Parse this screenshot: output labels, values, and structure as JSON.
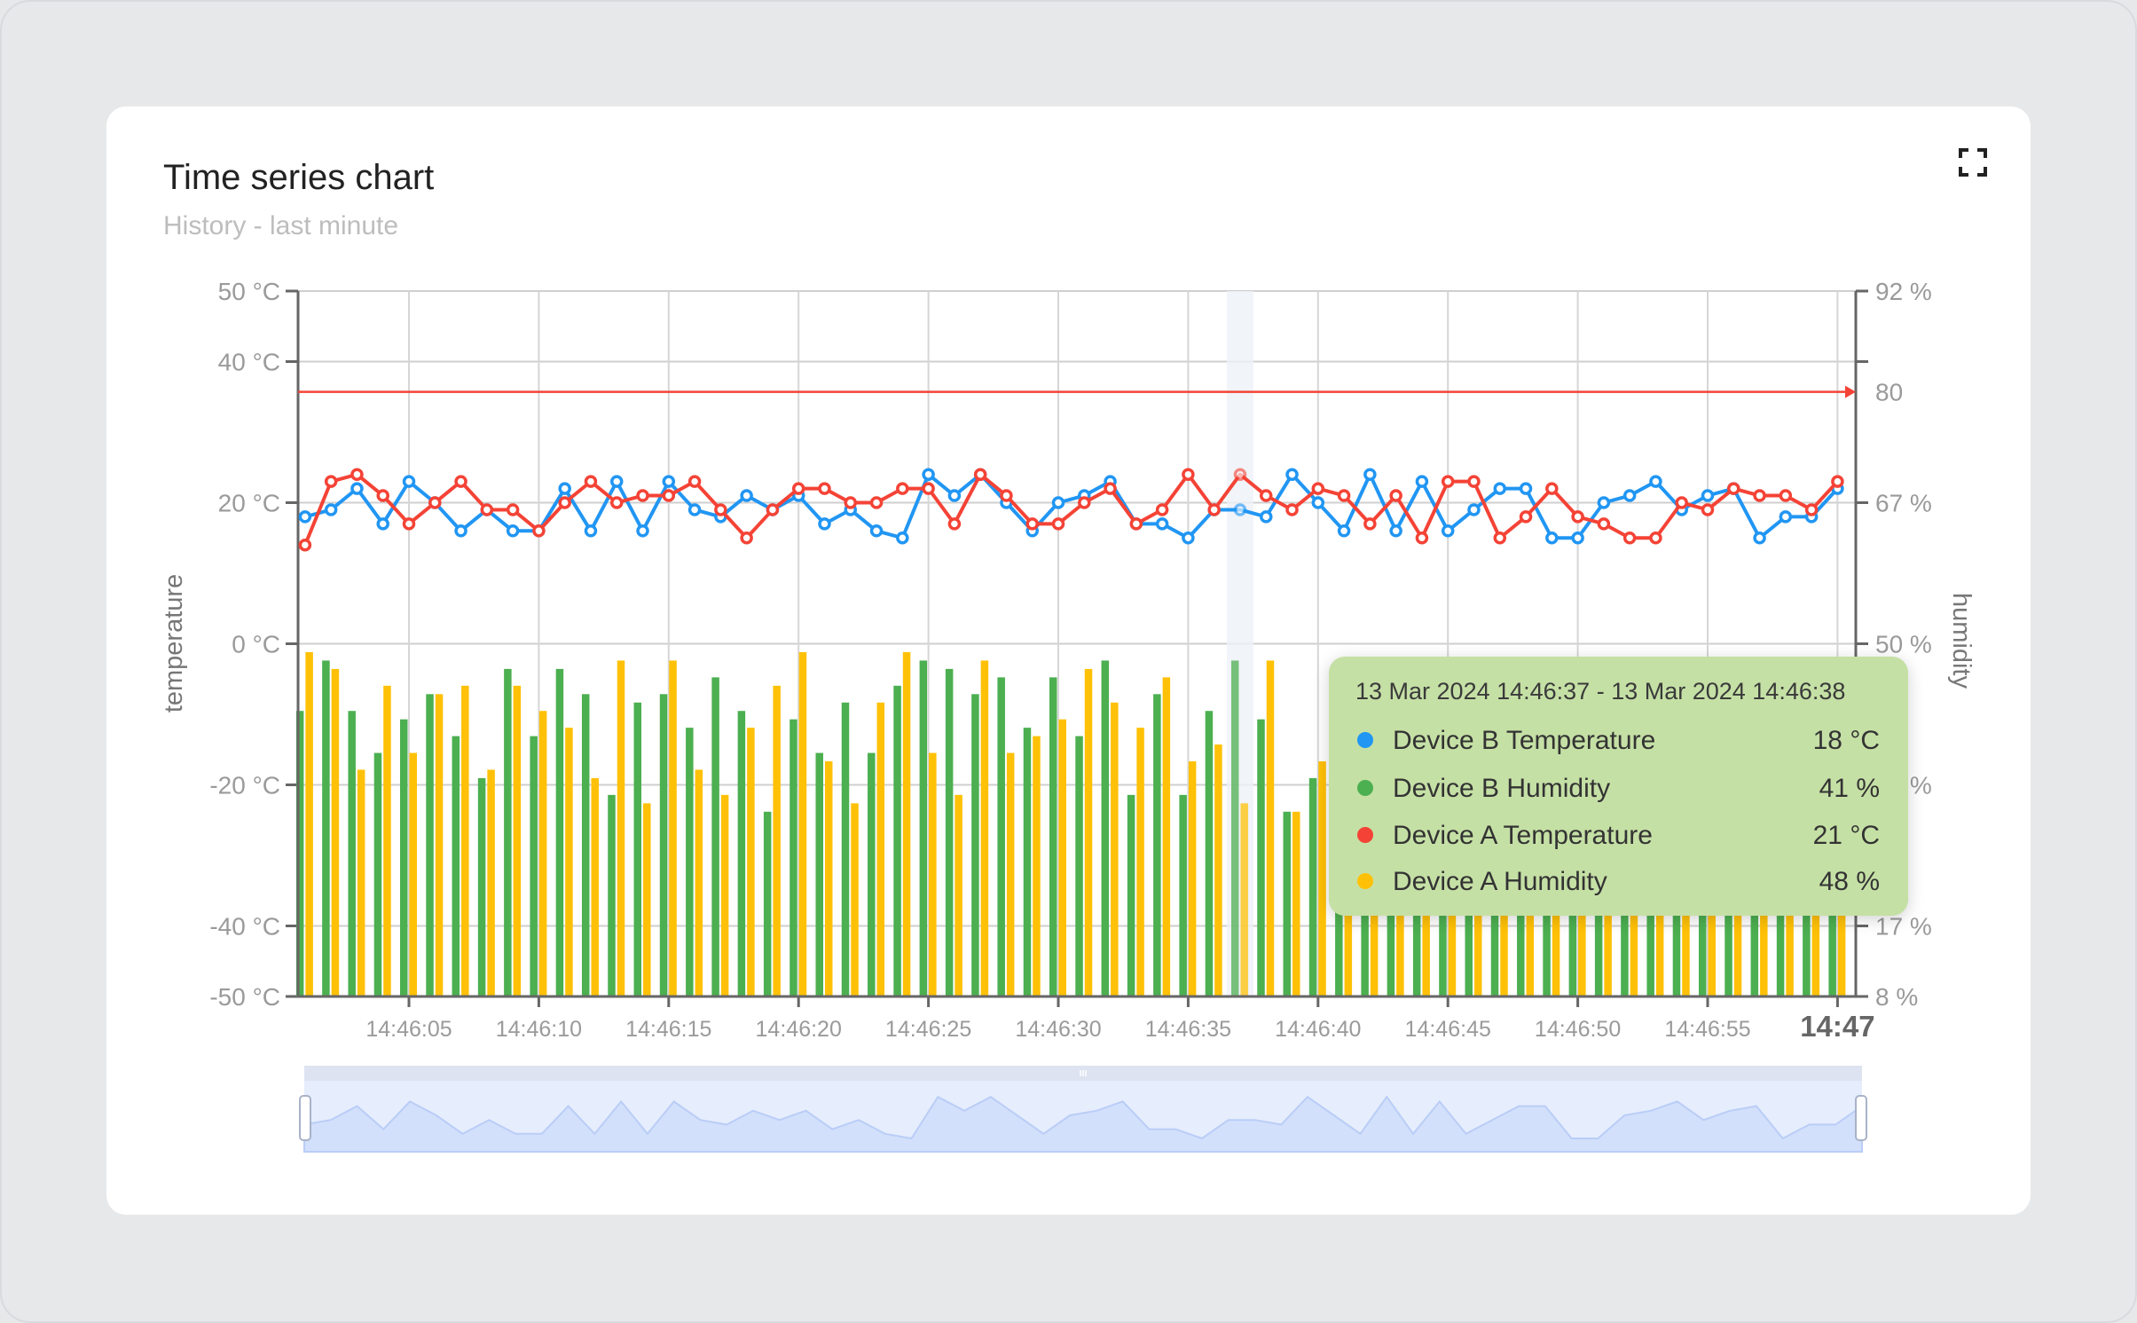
{
  "widget": {
    "title": "Time series chart",
    "subtitle": "History - last minute",
    "fullscreen_icon": "fullscreen-icon"
  },
  "tooltip": {
    "header": "13 Mar 2024 14:46:37 - 13 Mar 2024 14:46:38",
    "rows": [
      {
        "label": "Device B Temperature",
        "value": "18 °C",
        "color": "#2196f3"
      },
      {
        "label": "Device B Humidity",
        "value": "41 %",
        "color": "#4caf50"
      },
      {
        "label": "Device A Temperature",
        "value": "21 °C",
        "color": "#f44336"
      },
      {
        "label": "Device A Humidity",
        "value": "48 %",
        "color": "#ffc107"
      }
    ]
  },
  "chart_data": {
    "type": "line+bar",
    "x": [
      "14:46:01",
      "14:46:02",
      "14:46:03",
      "14:46:04",
      "14:46:05",
      "14:46:06",
      "14:46:07",
      "14:46:08",
      "14:46:09",
      "14:46:10",
      "14:46:11",
      "14:46:12",
      "14:46:13",
      "14:46:14",
      "14:46:15",
      "14:46:16",
      "14:46:17",
      "14:46:18",
      "14:46:19",
      "14:46:20",
      "14:46:21",
      "14:46:22",
      "14:46:23",
      "14:46:24",
      "14:46:25",
      "14:46:26",
      "14:46:27",
      "14:46:28",
      "14:46:29",
      "14:46:30",
      "14:46:31",
      "14:46:32",
      "14:46:33",
      "14:46:34",
      "14:46:35",
      "14:46:36",
      "14:46:37",
      "14:46:38",
      "14:46:39",
      "14:46:40",
      "14:46:41",
      "14:46:42",
      "14:46:43",
      "14:46:44",
      "14:46:45",
      "14:46:46",
      "14:46:47",
      "14:46:48",
      "14:46:49",
      "14:46:50",
      "14:46:51",
      "14:46:52",
      "14:46:53",
      "14:46:54",
      "14:46:55",
      "14:46:56",
      "14:46:57",
      "14:46:58",
      "14:46:59",
      "14:47:00"
    ],
    "series": [
      {
        "name": "Device B Temperature",
        "type": "line",
        "axis": "temperature",
        "color": "#2196f3",
        "values": [
          18,
          19,
          22,
          17,
          23,
          20,
          16,
          19,
          16,
          16,
          22,
          16,
          23,
          16,
          23,
          19,
          18,
          21,
          19,
          21,
          17,
          19,
          16,
          15,
          24,
          21,
          24,
          20,
          16,
          20,
          21,
          23,
          17,
          17,
          15,
          19,
          19,
          18,
          24,
          20,
          16,
          24,
          16,
          23,
          16,
          19,
          22,
          22,
          15,
          15,
          20,
          21,
          23,
          19,
          21,
          22,
          15,
          18,
          18,
          22
        ]
      },
      {
        "name": "Device B Humidity",
        "type": "bar",
        "axis": "humidity",
        "color": "#4caf50",
        "values": [
          42,
          48,
          42,
          37,
          41,
          44,
          39,
          34,
          47,
          39,
          47,
          44,
          32,
          43,
          44,
          40,
          46,
          42,
          30,
          41,
          37,
          43,
          37,
          45,
          48,
          47,
          44,
          46,
          40,
          46,
          39,
          48,
          32,
          44,
          32,
          42,
          48,
          41,
          30,
          34,
          38,
          45,
          33,
          47,
          41,
          36,
          44,
          30,
          42,
          39,
          46,
          35,
          43,
          40,
          37,
          48,
          33,
          44,
          39,
          42
        ]
      },
      {
        "name": "Device A Temperature",
        "type": "line",
        "axis": "temperature",
        "color": "#f44336",
        "values": [
          14,
          23,
          24,
          21,
          17,
          20,
          23,
          19,
          19,
          16,
          20,
          23,
          20,
          21,
          21,
          23,
          19,
          15,
          19,
          22,
          22,
          20,
          20,
          22,
          22,
          17,
          24,
          21,
          17,
          17,
          20,
          22,
          17,
          19,
          24,
          19,
          24,
          21,
          19,
          22,
          21,
          17,
          21,
          15,
          23,
          23,
          15,
          18,
          22,
          18,
          17,
          15,
          15,
          20,
          19,
          22,
          21,
          21,
          19,
          23
        ]
      },
      {
        "name": "Device A Humidity",
        "type": "bar",
        "axis": "humidity",
        "color": "#ffc107",
        "values": [
          49,
          47,
          35,
          45,
          37,
          44,
          45,
          35,
          45,
          42,
          40,
          34,
          48,
          31,
          48,
          35,
          32,
          40,
          45,
          49,
          36,
          31,
          43,
          49,
          37,
          32,
          48,
          37,
          39,
          41,
          47,
          43,
          40,
          46,
          36,
          38,
          31,
          48,
          30,
          36,
          44,
          36,
          47,
          39,
          31,
          46,
          38,
          43,
          35,
          48,
          40,
          45,
          32,
          47,
          41,
          36,
          44,
          38,
          46,
          34
        ]
      }
    ],
    "y_left": {
      "label": "temperature",
      "range": [
        -50,
        50
      ],
      "ticks": [
        50,
        40,
        20,
        0,
        -20,
        -40,
        -50
      ],
      "tick_labels": [
        "50 °C",
        "40 °C",
        "20 °C",
        "0 °C",
        "-20 °C",
        "-40 °C",
        "-50 °C"
      ]
    },
    "y_right": {
      "label": "humidity",
      "range": [
        8,
        92
      ],
      "tick_labels": [
        "92 %",
        "",
        "67 %",
        "50 %",
        "33 %",
        "17 %",
        "8 %"
      ]
    },
    "mark_line": {
      "axis": "humidity",
      "value": 80,
      "label": "80",
      "color": "#f44336"
    },
    "x_axis": {
      "range": [
        "14:46:00.7",
        "14:47:01"
      ],
      "ticks": [
        "14:46:05",
        "14:46:10",
        "14:46:15",
        "14:46:20",
        "14:46:25",
        "14:46:30",
        "14:46:35",
        "14:46:40",
        "14:46:45",
        "14:46:50",
        "14:46:55",
        "14:47:00"
      ],
      "tick_labels": [
        "14:46:05",
        "14:46:10",
        "14:46:15",
        "14:46:20",
        "14:46:25",
        "14:46:30",
        "14:46:35",
        "14:46:40",
        "14:46:45",
        "14:46:50",
        "14:46:55",
        "14:47"
      ]
    },
    "hovered_index": 36,
    "grid": true,
    "legend": "none",
    "navigator": {
      "series": "Device B Temperature",
      "range_percent": [
        0,
        100
      ]
    }
  }
}
